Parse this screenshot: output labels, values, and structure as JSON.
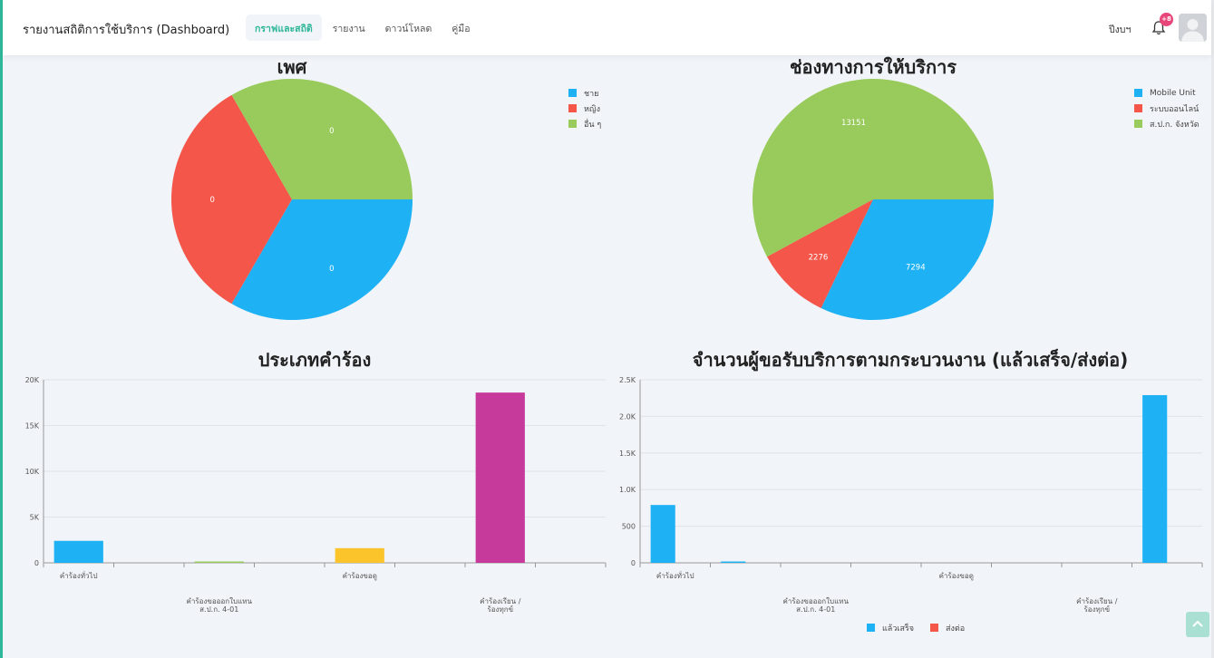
{
  "header": {
    "title": "รายงานสถิติการใช้บริการ (Dashboard)",
    "nav": [
      {
        "label": "กราฟและสถิติ",
        "active": true
      },
      {
        "label": "รายงาน",
        "active": false
      },
      {
        "label": "ดาวน์โหลด",
        "active": false
      },
      {
        "label": "คู่มือ",
        "active": false
      }
    ],
    "year_label": "ปีงบฯ",
    "notification_count": "+8",
    "bell_icon": "bell-icon",
    "avatar_icon": "user-avatar-icon"
  },
  "colors": {
    "blue": "#1eb2f5",
    "red": "#f4564a",
    "green": "#98cb5b",
    "yellow": "#fbc42a",
    "magenta": "#c63a9b",
    "accent": "#2fb79a"
  },
  "scroll_top_icon": "arrow-up-icon",
  "chart_data": [
    {
      "type": "pie",
      "title": "เพศ",
      "slices": [
        {
          "label": "ชาย",
          "value": 0,
          "color": "#1eb2f5"
        },
        {
          "label": "หญิง",
          "value": 0,
          "color": "#f4564a"
        },
        {
          "label": "อื่น ๆ",
          "value": 0,
          "color": "#98cb5b"
        }
      ]
    },
    {
      "type": "pie",
      "title": "ช่องทางการให้บริการ",
      "slices": [
        {
          "label": "Mobile Unit",
          "value": 7294,
          "color": "#1eb2f5"
        },
        {
          "label": "ระบบออนไลน์",
          "value": 2276,
          "color": "#f4564a"
        },
        {
          "label": "ส.ป.ก. จังหวัด",
          "value": 13151,
          "color": "#98cb5b"
        }
      ]
    },
    {
      "type": "bar",
      "title": "ประเภทคำร้อง",
      "categories": [
        "คำร้องทั่วไป",
        "",
        "คำร้องขอออกใบแทน ส.ป.ก. 4-01",
        "",
        "คำร้องขอดู",
        "",
        "คำร้องเรียน / ร้องทุกข์",
        ""
      ],
      "x_labels": [
        {
          "text": [
            "คำร้องทั่วไป"
          ],
          "tier": 0
        },
        {
          "text": [
            "คำร้องขอออกใบแทน",
            "ส.ป.ก. 4-01"
          ],
          "tier": 1
        },
        {
          "text": [
            "คำร้องขอดู"
          ],
          "tier": 0
        },
        {
          "text": [
            "คำร้องเรียน /",
            "ร้องทุกข์"
          ],
          "tier": 1
        }
      ],
      "values": [
        2400,
        0,
        150,
        0,
        1600,
        0,
        18600,
        0
      ],
      "colors": [
        "#1eb2f5",
        "#f4564a",
        "#98cb5b",
        "#98cb5b",
        "#fbc42a",
        "#fbc42a",
        "#c63a9b",
        "#c63a9b"
      ],
      "yticks": [
        "0",
        "5K",
        "10K",
        "15K",
        "20K"
      ],
      "ylim": [
        0,
        20000
      ]
    },
    {
      "type": "bar",
      "title": "จำนวนผู้ขอรับบริการตามกระบวนงาน (แล้วเสร็จ/ส่งต่อ)",
      "categories": [
        "คำร้องทั่วไป",
        "",
        "คำร้องขอออกใบแทน ส.ป.ก. 4-01",
        "",
        "คำร้องขอดู",
        "",
        "คำร้องเรียน / ร้องทุกข์",
        ""
      ],
      "x_labels": [
        {
          "text": [
            "คำร้องทั่วไป"
          ],
          "tier": 0
        },
        {
          "text": [
            "คำร้องขอออกใบแทน",
            "ส.ป.ก. 4-01"
          ],
          "tier": 1
        },
        {
          "text": [
            "คำร้องขอดู"
          ],
          "tier": 0
        },
        {
          "text": [
            "คำร้องเรียน /",
            "ร้องทุกข์"
          ],
          "tier": 1
        }
      ],
      "series": [
        {
          "name": "แล้วเสร็จ",
          "color": "#1eb2f5",
          "values": [
            790,
            10,
            0,
            0,
            0,
            0,
            0,
            2290
          ]
        },
        {
          "name": "ส่งต่อ",
          "color": "#f4564a",
          "values": [
            0,
            0,
            0,
            0,
            0,
            0,
            0,
            0
          ]
        }
      ],
      "yticks": [
        "0",
        "500",
        "1.0K",
        "1.5K",
        "2.0K",
        "2.5K"
      ],
      "ylim": [
        0,
        2500
      ],
      "legend_position": "bottom"
    }
  ]
}
